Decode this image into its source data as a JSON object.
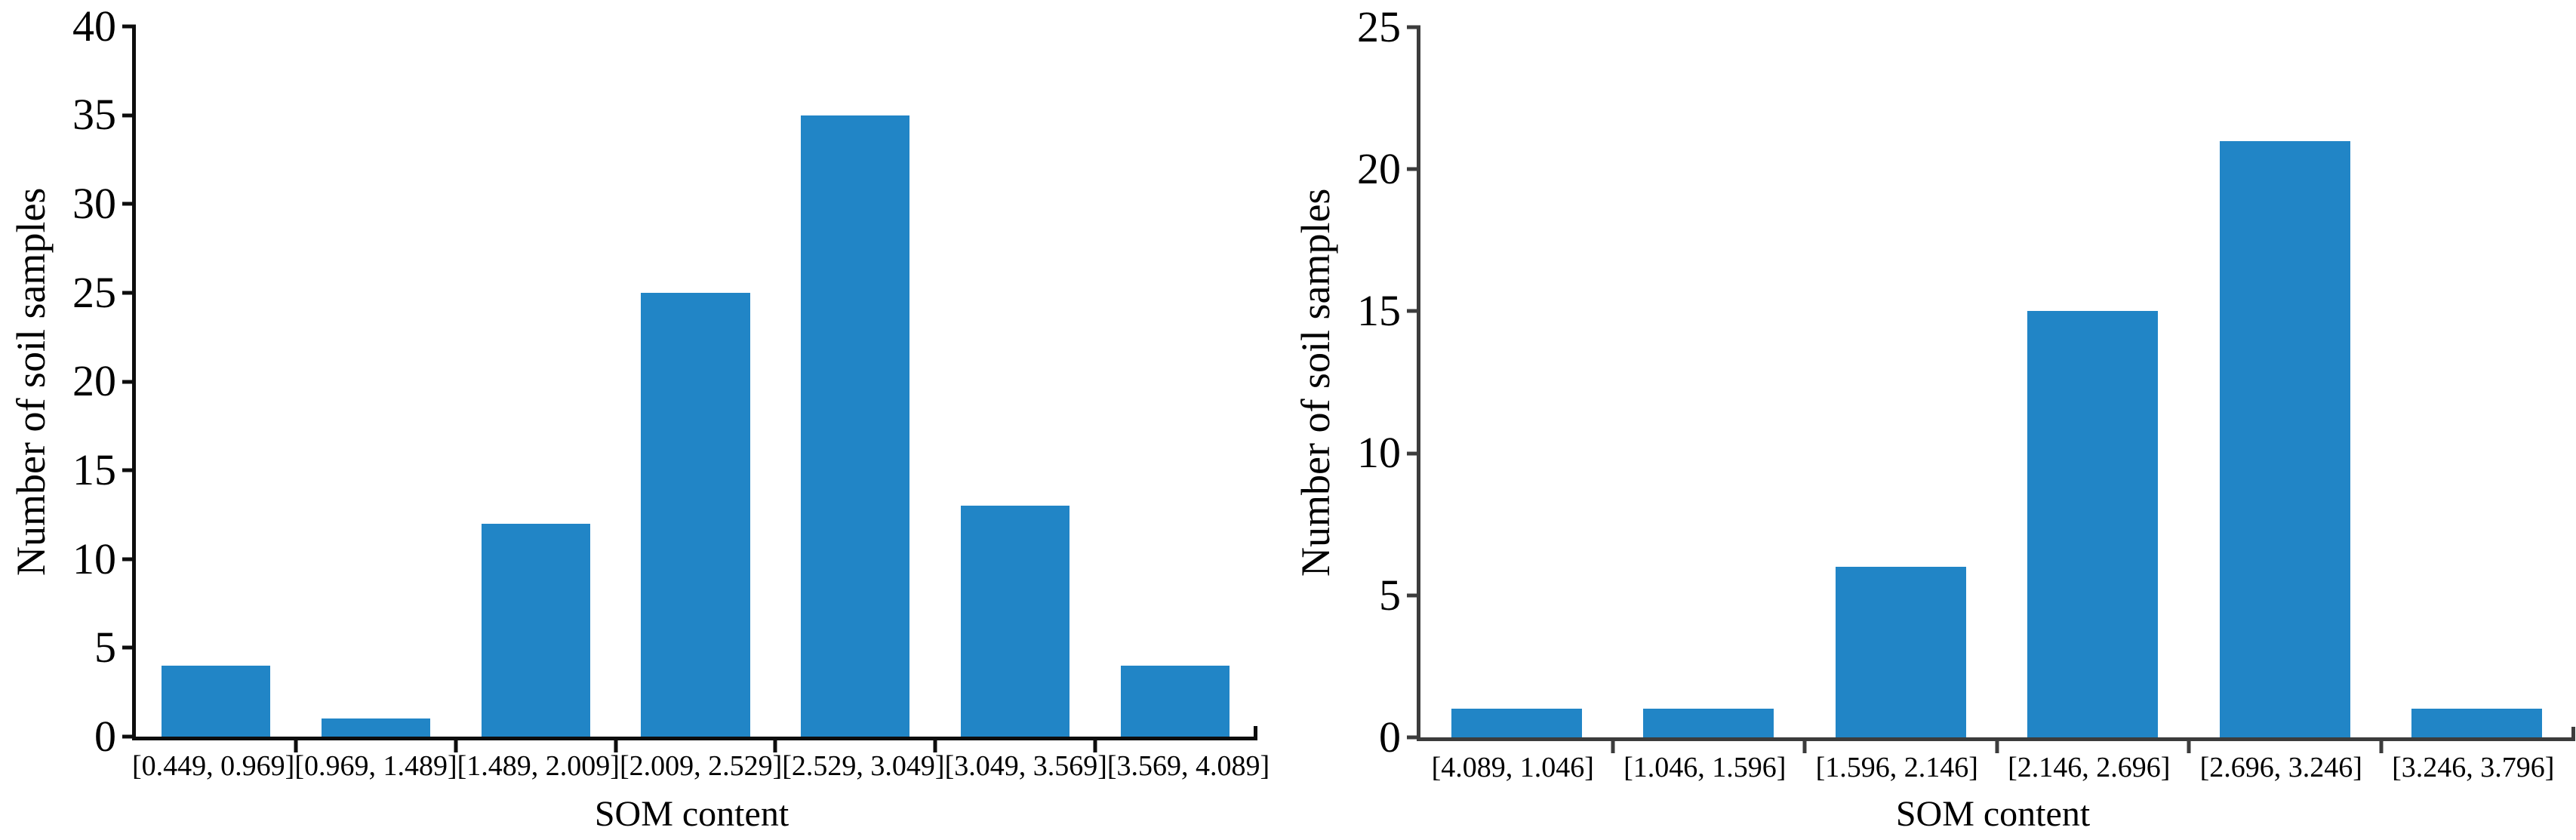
{
  "figure": {
    "background_color": "#ffffff"
  },
  "chart_data": [
    {
      "type": "bar",
      "panel": "left",
      "title": "",
      "xlabel": "SOM content",
      "ylabel": "Number of soil samples",
      "categories": [
        "[0.449, 0.969]",
        "[0.969, 1.489]",
        "[1.489, 2.009]",
        "[2.009, 2.529]",
        "[2.529, 3.049]",
        "[3.049, 3.569]",
        "[3.569, 4.089]"
      ],
      "values": [
        4,
        1,
        12,
        25,
        35,
        13,
        4
      ],
      "ylim": [
        0,
        40
      ],
      "yticks": [
        0,
        5,
        10,
        15,
        20,
        25,
        30,
        35,
        40
      ],
      "grid": false,
      "legend": "none",
      "bar_color": "#2185c6",
      "axis_color": "#0d0d0d"
    },
    {
      "type": "bar",
      "panel": "right",
      "title": "",
      "xlabel": "SOM content",
      "ylabel": "Number of soil samples",
      "categories": [
        "[4.089, 1.046]",
        "[1.046, 1.596]",
        "[1.596, 2.146]",
        "[2.146, 2.696]",
        "[2.696, 3.246]",
        "[3.246, 3.796]"
      ],
      "values": [
        1,
        1,
        6,
        15,
        21,
        1
      ],
      "ylim": [
        0,
        25
      ],
      "yticks": [
        0,
        5,
        10,
        15,
        20,
        25
      ],
      "grid": false,
      "legend": "none",
      "bar_color": "#2185c6",
      "axis_color": "#3c3c3c"
    }
  ]
}
